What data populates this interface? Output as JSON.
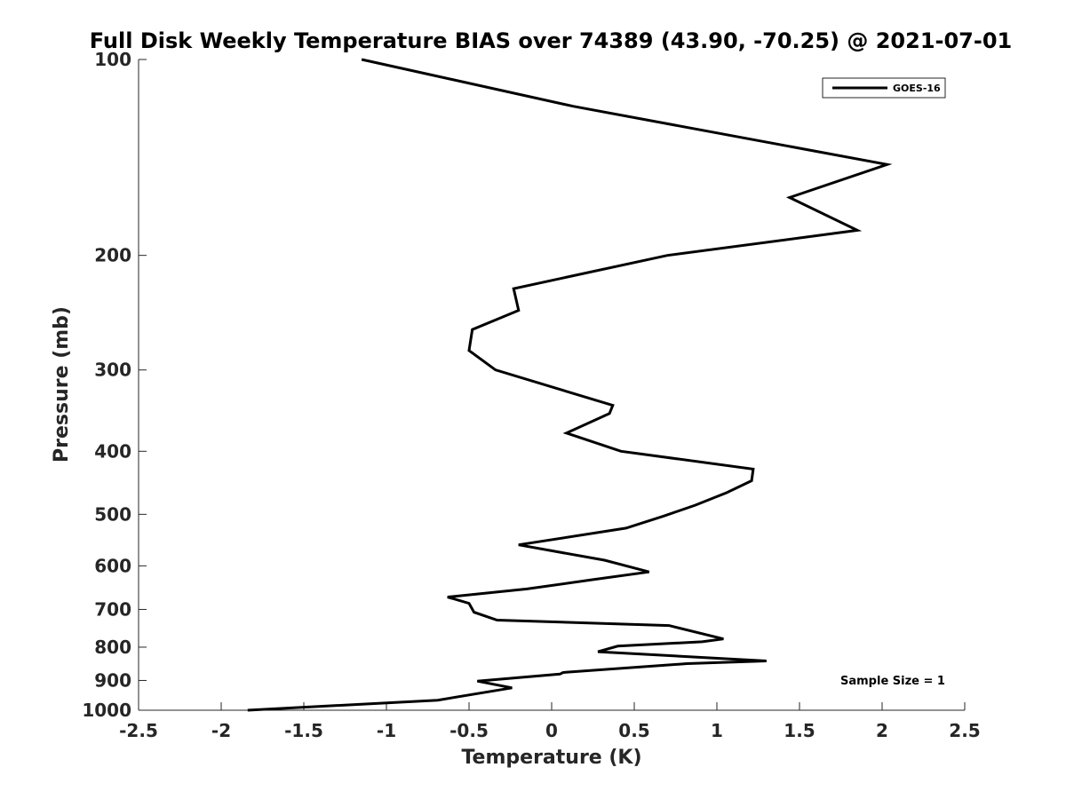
{
  "chart_data": {
    "type": "line",
    "title": "Full Disk Weekly Temperature BIAS over 74389 (43.90, -70.25) @ 2021-07-01",
    "xlabel": "Temperature (K)",
    "ylabel": "Pressure (mb)",
    "xlim": [
      -2.5,
      2.5
    ],
    "ylim": [
      1000,
      100
    ],
    "yscale": "log",
    "y_reversed": true,
    "x_ticks": [
      "-2.5",
      "-2",
      "-1.5",
      "-1",
      "-0.5",
      "0",
      "0.5",
      "1",
      "1.5",
      "2",
      "2.5"
    ],
    "x_tick_values": [
      -2.5,
      -2,
      -1.5,
      -1,
      -0.5,
      0,
      0.5,
      1,
      1.5,
      2,
      2.5
    ],
    "y_ticks": [
      "100",
      "200",
      "300",
      "400",
      "500",
      "600",
      "700",
      "800",
      "900",
      "1000"
    ],
    "y_tick_values": [
      100,
      200,
      300,
      400,
      500,
      600,
      700,
      800,
      900,
      1000
    ],
    "grid": false,
    "legend_position": "top-right",
    "annotation": "Sample Size = 1",
    "series": [
      {
        "name": "GOES-16",
        "color": "#000000",
        "x": [
          -1.15,
          0.13,
          2.03,
          1.44,
          1.85,
          0.7,
          -0.23,
          -0.2,
          -0.48,
          -0.5,
          -0.34,
          0.37,
          0.35,
          0.09,
          0.42,
          1.22,
          1.21,
          1.06,
          0.87,
          0.68,
          0.45,
          -0.2,
          0.32,
          0.59,
          0.25,
          -0.15,
          -0.63,
          -0.5,
          -0.47,
          -0.33,
          0.71,
          1.04,
          0.91,
          0.4,
          0.28,
          1.3,
          0.82,
          0.07,
          0.05,
          -0.45,
          -0.24,
          -0.69,
          -1.84
        ],
        "y": [
          100,
          118,
          145,
          163,
          183,
          200,
          225,
          243,
          260,
          280,
          300,
          340,
          350,
          375,
          400,
          426,
          444,
          463,
          484,
          503,
          525,
          557,
          588,
          613,
          630,
          651,
          670,
          685,
          707,
          727,
          741,
          777,
          785,
          797,
          813,
          840,
          848,
          875,
          880,
          902,
          924,
          965,
          1000
        ]
      }
    ]
  }
}
